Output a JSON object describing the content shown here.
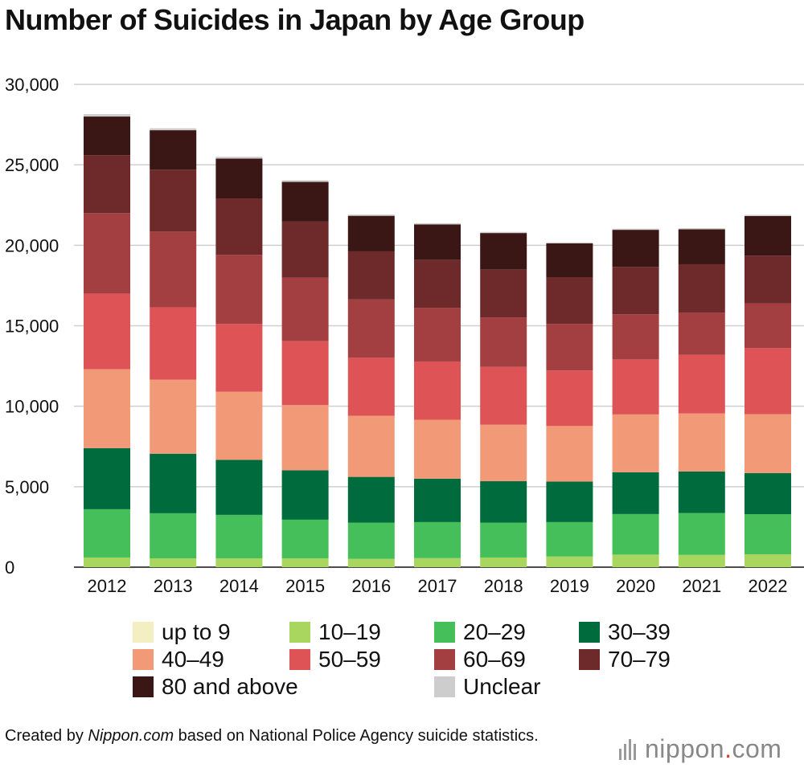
{
  "title": "Number of Suicides in Japan by Age Group",
  "source": {
    "prefix": "Created by ",
    "site": "Nippon.com",
    "suffix": " based on National Police Agency suicide statistics."
  },
  "logo": {
    "name": "nippon",
    "dot": ".",
    "tld": "com"
  },
  "chart_data": {
    "type": "bar",
    "stacked": true,
    "title": "Number of Suicides in Japan by Age Group",
    "categories": [
      "2012",
      "2013",
      "2014",
      "2015",
      "2016",
      "2017",
      "2018",
      "2019",
      "2020",
      "2021",
      "2022"
    ],
    "ylim": [
      0,
      30000
    ],
    "yticks": [
      0,
      5000,
      10000,
      15000,
      20000,
      25000,
      30000
    ],
    "ytick_labels": [
      "0",
      "5,000",
      "10,000",
      "15,000",
      "20,000",
      "25,000",
      "30,000"
    ],
    "grid": true,
    "legend_position": "bottom",
    "series": [
      {
        "name": "up to 9",
        "color": "#f3efc2",
        "values": [
          0,
          0,
          0,
          0,
          0,
          0,
          0,
          0,
          0,
          0,
          0
        ]
      },
      {
        "name": "10–19",
        "color": "#a8d65f",
        "values": [
          600,
          550,
          550,
          550,
          520,
          560,
          600,
          660,
          780,
          760,
          800
        ]
      },
      {
        "name": "20–29",
        "color": "#45bf5a",
        "values": [
          3000,
          2800,
          2700,
          2400,
          2250,
          2240,
          2170,
          2140,
          2520,
          2610,
          2490
        ]
      },
      {
        "name": "30–39",
        "color": "#006b3c",
        "values": [
          3800,
          3700,
          3420,
          3070,
          2840,
          2700,
          2570,
          2520,
          2600,
          2570,
          2560
        ]
      },
      {
        "name": "40–49",
        "color": "#f29a78",
        "values": [
          4900,
          4600,
          4230,
          4050,
          3800,
          3660,
          3510,
          3450,
          3590,
          3610,
          3650
        ]
      },
      {
        "name": "50–59",
        "color": "#de5456",
        "values": [
          4700,
          4500,
          4210,
          3970,
          3600,
          3620,
          3590,
          3450,
          3420,
          3640,
          4110
        ]
      },
      {
        "name": "60–69",
        "color": "#a33f40",
        "values": [
          5000,
          4700,
          4300,
          3940,
          3620,
          3340,
          3080,
          2900,
          2800,
          2630,
          2770
        ]
      },
      {
        "name": "70–79",
        "color": "#6e2a2b",
        "values": [
          3600,
          3850,
          3500,
          3490,
          2990,
          2980,
          2980,
          2900,
          2950,
          3000,
          2980
        ]
      },
      {
        "name": "80 and above",
        "color": "#3a1714",
        "values": [
          2400,
          2450,
          2480,
          2470,
          2210,
          2200,
          2260,
          2100,
          2300,
          2170,
          2460
        ]
      },
      {
        "name": "Unclear",
        "color": "#cdcdcd",
        "values": [
          150,
          120,
          110,
          100,
          80,
          70,
          70,
          60,
          70,
          70,
          70
        ]
      }
    ]
  }
}
